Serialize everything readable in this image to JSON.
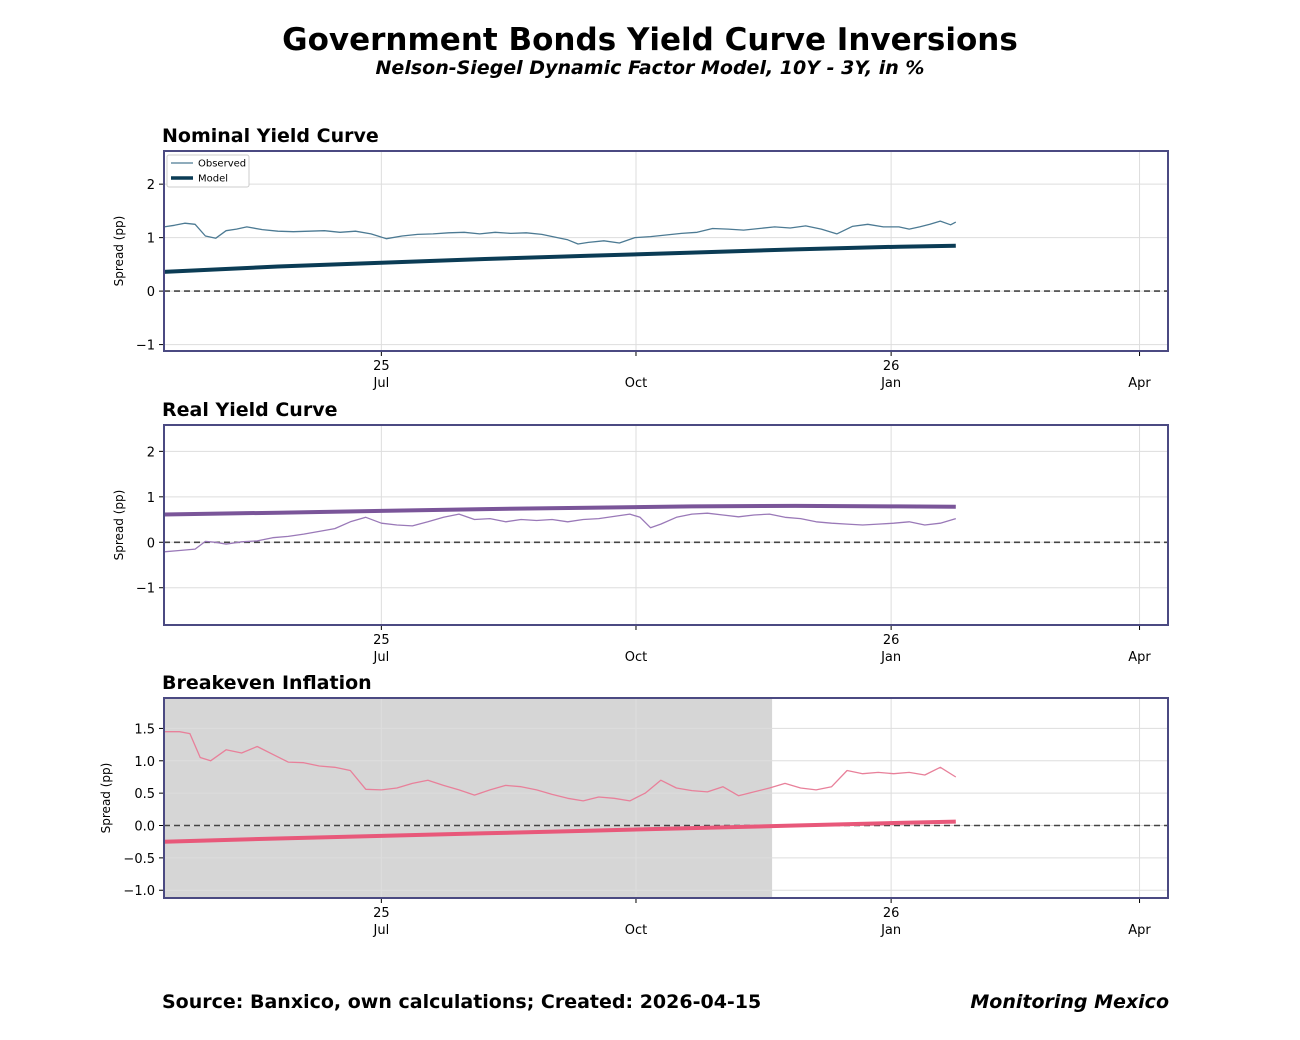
{
  "header": {
    "title": "Government Bonds Yield Curve Inversions",
    "subtitle": "Nelson-Siegel Dynamic Factor Model, 10Y - 3Y, in %"
  },
  "footer": {
    "source": "Source: Banxico, own calculations; Created: 2026-04-15",
    "brand": "Monitoring Mexico"
  },
  "colors": {
    "frame": "#4b4a82",
    "zero_line": "#444444",
    "grid": "#dddddd",
    "shade": "#d6d6d6"
  },
  "chart_data": [
    {
      "type": "line",
      "title": "Nominal Yield Curve",
      "ylabel": "Spread (pp)",
      "xlim": [
        -4.2,
        15.2
      ],
      "ylim": [
        -1.12,
        2.62
      ],
      "yticks": [
        -1,
        0,
        1,
        2
      ],
      "ytick_labels": [
        "−1",
        "0",
        "1",
        "2"
      ],
      "xticks": [
        {
          "x": 0,
          "line1": "25",
          "line2": "Jul"
        },
        {
          "x": 4.92,
          "line1": "",
          "line2": "Oct"
        },
        {
          "x": 9.85,
          "line1": "26",
          "line2": "Jan"
        },
        {
          "x": 14.65,
          "line1": "",
          "line2": "Apr"
        }
      ],
      "legend": {
        "position": "top-left",
        "entries": [
          "Observed",
          "Model"
        ]
      },
      "shaded_region": null,
      "series": [
        {
          "name": "Observed",
          "color": "#4c7a93",
          "width": 1.3,
          "x": [
            -4.2,
            -4.0,
            -3.8,
            -3.6,
            -3.4,
            -3.2,
            -3.0,
            -2.8,
            -2.6,
            -2.3,
            -2.0,
            -1.7,
            -1.4,
            -1.1,
            -0.8,
            -0.5,
            -0.2,
            0.1,
            0.4,
            0.7,
            1.0,
            1.3,
            1.6,
            1.9,
            2.2,
            2.5,
            2.8,
            3.1,
            3.4,
            3.6,
            3.8,
            4.0,
            4.3,
            4.6,
            4.9,
            5.2,
            5.5,
            5.8,
            6.1,
            6.4,
            6.7,
            7.0,
            7.3,
            7.6,
            7.9,
            8.2,
            8.5,
            8.8,
            9.1,
            9.4,
            9.7,
            10.0,
            10.2,
            10.4,
            10.6,
            10.8,
            11.0,
            11.1
          ],
          "y": [
            1.2,
            1.23,
            1.27,
            1.25,
            1.03,
            0.99,
            1.13,
            1.16,
            1.2,
            1.15,
            1.12,
            1.11,
            1.12,
            1.13,
            1.1,
            1.12,
            1.07,
            0.98,
            1.03,
            1.06,
            1.07,
            1.09,
            1.1,
            1.07,
            1.1,
            1.08,
            1.09,
            1.06,
            1.0,
            0.96,
            0.88,
            0.91,
            0.94,
            0.9,
            1.0,
            1.02,
            1.05,
            1.08,
            1.1,
            1.17,
            1.16,
            1.14,
            1.17,
            1.2,
            1.18,
            1.22,
            1.16,
            1.07,
            1.21,
            1.25,
            1.2,
            1.2,
            1.16,
            1.2,
            1.25,
            1.31,
            1.24,
            1.29
          ]
        },
        {
          "name": "Model",
          "color": "#0b3c55",
          "width": 4,
          "x": [
            -4.2,
            -2.0,
            0.0,
            2.0,
            4.0,
            6.0,
            8.0,
            10.0,
            11.1
          ],
          "y": [
            0.36,
            0.46,
            0.53,
            0.6,
            0.66,
            0.72,
            0.78,
            0.83,
            0.85
          ]
        }
      ]
    },
    {
      "type": "line",
      "title": "Real Yield Curve",
      "ylabel": "Spread (pp)",
      "xlim": [
        -4.2,
        15.2
      ],
      "ylim": [
        -1.82,
        2.58
      ],
      "yticks": [
        -1,
        0,
        1,
        2
      ],
      "ytick_labels": [
        "−1",
        "0",
        "1",
        "2"
      ],
      "xticks": [
        {
          "x": 0,
          "line1": "25",
          "line2": "Jul"
        },
        {
          "x": 4.92,
          "line1": "",
          "line2": "Oct"
        },
        {
          "x": 9.85,
          "line1": "26",
          "line2": "Jan"
        },
        {
          "x": 14.65,
          "line1": "",
          "line2": "Apr"
        }
      ],
      "legend": null,
      "shaded_region": null,
      "series": [
        {
          "name": "Observed",
          "color": "#9a79b8",
          "width": 1.3,
          "x": [
            -4.2,
            -3.9,
            -3.6,
            -3.4,
            -3.2,
            -3.0,
            -2.7,
            -2.4,
            -2.1,
            -1.8,
            -1.5,
            -1.2,
            -0.9,
            -0.6,
            -0.3,
            0.0,
            0.3,
            0.6,
            0.9,
            1.2,
            1.5,
            1.8,
            2.1,
            2.4,
            2.7,
            3.0,
            3.3,
            3.6,
            3.9,
            4.2,
            4.5,
            4.8,
            5.0,
            5.2,
            5.4,
            5.7,
            6.0,
            6.3,
            6.6,
            6.9,
            7.2,
            7.5,
            7.8,
            8.1,
            8.4,
            8.7,
            9.0,
            9.3,
            9.6,
            9.9,
            10.2,
            10.5,
            10.8,
            11.1
          ],
          "y": [
            -0.21,
            -0.18,
            -0.15,
            0.02,
            0.0,
            -0.04,
            0.01,
            0.03,
            0.1,
            0.13,
            0.18,
            0.24,
            0.3,
            0.45,
            0.55,
            0.42,
            0.38,
            0.36,
            0.45,
            0.55,
            0.62,
            0.5,
            0.52,
            0.45,
            0.5,
            0.48,
            0.5,
            0.45,
            0.5,
            0.52,
            0.57,
            0.62,
            0.55,
            0.32,
            0.4,
            0.55,
            0.62,
            0.64,
            0.6,
            0.56,
            0.6,
            0.62,
            0.55,
            0.52,
            0.45,
            0.42,
            0.4,
            0.38,
            0.4,
            0.42,
            0.45,
            0.38,
            0.42,
            0.52
          ]
        },
        {
          "name": "Model",
          "color": "#7a5599",
          "width": 4,
          "x": [
            -4.2,
            -2.0,
            0.0,
            2.0,
            4.0,
            6.0,
            8.0,
            10.0,
            11.1
          ],
          "y": [
            0.61,
            0.65,
            0.69,
            0.73,
            0.76,
            0.79,
            0.8,
            0.79,
            0.78
          ]
        }
      ]
    },
    {
      "type": "line",
      "title": "Breakeven Inflation",
      "ylabel": "Spread (pp)",
      "xlim": [
        -4.2,
        15.2
      ],
      "ylim": [
        -1.12,
        1.97
      ],
      "yticks": [
        -1.0,
        -0.5,
        0.0,
        0.5,
        1.0,
        1.5
      ],
      "ytick_labels": [
        "−1.0",
        "−0.5",
        "0.0",
        "0.5",
        "1.0",
        "1.5"
      ],
      "xticks": [
        {
          "x": 0,
          "line1": "25",
          "line2": "Jul"
        },
        {
          "x": 4.92,
          "line1": "",
          "line2": "Oct"
        },
        {
          "x": 9.85,
          "line1": "26",
          "line2": "Jan"
        },
        {
          "x": 14.65,
          "line1": "",
          "line2": "Apr"
        }
      ],
      "legend": null,
      "shaded_region": {
        "x0": -4.2,
        "x1": 7.55
      },
      "series": [
        {
          "name": "Observed",
          "color": "#e8809a",
          "width": 1.3,
          "x": [
            -4.2,
            -3.9,
            -3.7,
            -3.5,
            -3.3,
            -3.0,
            -2.7,
            -2.4,
            -2.1,
            -1.8,
            -1.5,
            -1.2,
            -0.9,
            -0.6,
            -0.3,
            0.0,
            0.3,
            0.6,
            0.9,
            1.2,
            1.5,
            1.8,
            2.1,
            2.4,
            2.7,
            3.0,
            3.3,
            3.6,
            3.9,
            4.2,
            4.5,
            4.8,
            5.1,
            5.4,
            5.7,
            6.0,
            6.3,
            6.6,
            6.9,
            7.2,
            7.5,
            7.8,
            8.1,
            8.4,
            8.7,
            9.0,
            9.3,
            9.6,
            9.9,
            10.2,
            10.5,
            10.8,
            11.1
          ],
          "y": [
            1.45,
            1.45,
            1.42,
            1.05,
            1.0,
            1.17,
            1.12,
            1.22,
            1.1,
            0.98,
            0.97,
            0.92,
            0.9,
            0.85,
            0.56,
            0.55,
            0.58,
            0.65,
            0.7,
            0.62,
            0.55,
            0.47,
            0.55,
            0.62,
            0.6,
            0.55,
            0.48,
            0.42,
            0.38,
            0.44,
            0.42,
            0.38,
            0.5,
            0.7,
            0.58,
            0.54,
            0.52,
            0.6,
            0.46,
            0.52,
            0.58,
            0.65,
            0.58,
            0.55,
            0.6,
            0.85,
            0.8,
            0.82,
            0.8,
            0.82,
            0.78,
            0.9,
            0.75
          ]
        },
        {
          "name": "Model",
          "color": "#e8587a",
          "width": 4,
          "x": [
            -4.2,
            -2.0,
            0.0,
            2.0,
            4.0,
            6.0,
            8.0,
            10.0,
            11.1
          ],
          "y": [
            -0.25,
            -0.2,
            -0.16,
            -0.12,
            -0.08,
            -0.04,
            0.0,
            0.04,
            0.06
          ]
        }
      ]
    }
  ]
}
